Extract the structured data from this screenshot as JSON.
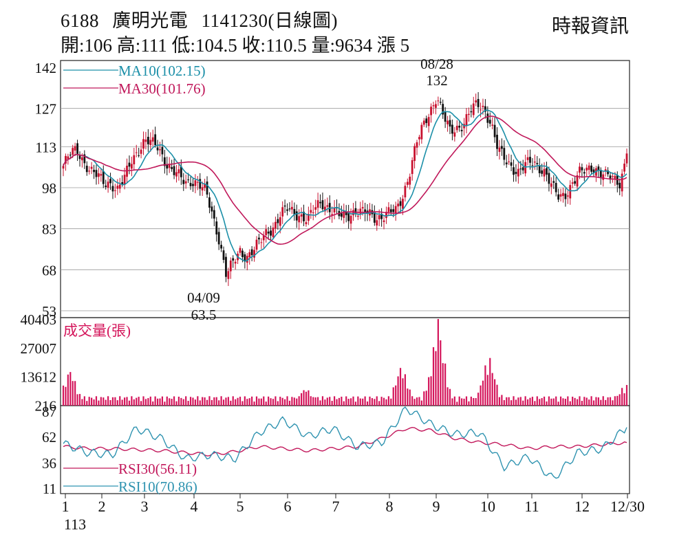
{
  "header": {
    "stock_code": "6188",
    "stock_name": "廣明光電",
    "date_label": "1141230(日線圖)",
    "open_label": "開:",
    "open": "106",
    "high_label": "高:",
    "high": "111",
    "low_label": "低:",
    "low": "104.5",
    "close_label": "收:",
    "close": "110.5",
    "volume_label": "量:",
    "volume": "9634",
    "change_label": "漲",
    "change": "5"
  },
  "source": "時報資訊",
  "colors": {
    "candle_up": "#c8102e",
    "candle_down": "#111111",
    "ma10": "#1b8fa8",
    "ma30": "#c0185a",
    "volume": "#d4145a",
    "rsi10": "#2f93b0",
    "rsi30": "#c2185b",
    "grid": "#9a9a9a"
  },
  "chart_data": [
    {
      "type": "candlestick",
      "ylim": [
        53,
        142
      ],
      "y_ticks": [
        "142",
        "127",
        "113",
        "98",
        "83",
        "68",
        "53"
      ],
      "x_ticks": [
        "1",
        "2",
        "3",
        "4",
        "5",
        "6",
        "7",
        "8",
        "9",
        "10",
        "11",
        "12",
        "12/30"
      ],
      "x_sublabel": "113",
      "legend": [
        {
          "label": "MA10(102.15)",
          "color": "#1b8fa8"
        },
        {
          "label": "MA30(101.76)",
          "color": "#c0185a"
        }
      ],
      "annotations": [
        {
          "date_text": "08/28",
          "value_text": "132",
          "type": "high"
        },
        {
          "date_text": "04/09",
          "value_text": "63.5",
          "type": "low"
        }
      ],
      "ohlc_monthly_approx": [
        {
          "month": "1",
          "points": [
            106,
            110,
            112,
            108,
            104,
            102,
            100
          ]
        },
        {
          "month": "2",
          "points": [
            100,
            97,
            101,
            108,
            112,
            115,
            114
          ]
        },
        {
          "month": "3",
          "points": [
            113,
            108,
            104,
            102,
            100,
            101,
            99
          ]
        },
        {
          "month": "4",
          "points": [
            96,
            88,
            79,
            66,
            70,
            75,
            73
          ]
        },
        {
          "month": "5",
          "points": [
            75,
            78,
            82,
            84,
            88,
            90,
            89
          ]
        },
        {
          "month": "6",
          "points": [
            88,
            86,
            90,
            93,
            91,
            89,
            87
          ]
        },
        {
          "month": "7",
          "points": [
            88,
            90,
            89,
            88,
            87,
            88,
            89
          ]
        },
        {
          "month": "8",
          "points": [
            89,
            95,
            104,
            114,
            120,
            126,
            132
          ]
        },
        {
          "month": "9",
          "points": [
            124,
            118,
            120,
            122,
            126,
            128,
            127
          ]
        },
        {
          "month": "10",
          "points": [
            122,
            112,
            108,
            106,
            104,
            106,
            107
          ]
        },
        {
          "month": "11",
          "points": [
            106,
            104,
            98,
            94,
            96,
            100,
            103
          ]
        },
        {
          "month": "12",
          "points": [
            104,
            106,
            104,
            102,
            101,
            100,
            110.5
          ]
        }
      ]
    },
    {
      "type": "bar",
      "title": "成交量(張)",
      "y_ticks": [
        "40403",
        "27007",
        "13612",
        "216"
      ],
      "ylim": [
        216,
        40403
      ],
      "notable_bars": [
        {
          "month": "1",
          "value": 18000
        },
        {
          "month": "6",
          "value": 9000
        },
        {
          "month": "8",
          "value": 20000
        },
        {
          "month": "9",
          "value": 40403
        },
        {
          "month": "10",
          "value": 25000
        },
        {
          "month": "12/30",
          "value": 9634
        }
      ]
    },
    {
      "type": "line",
      "y_ticks": [
        "87",
        "62",
        "36",
        "11"
      ],
      "ylim": [
        11,
        87
      ],
      "series": [
        {
          "name": "RSI30(56.11)",
          "color": "#c2185b",
          "values": [
            52,
            50,
            50,
            49,
            48,
            46,
            44,
            47,
            52,
            50,
            48,
            50,
            52,
            60,
            70,
            68,
            60,
            56,
            54,
            50,
            52,
            52,
            54,
            56
          ]
        },
        {
          "name": "RSI10(70.86)",
          "color": "#2f93b0",
          "values": [
            55,
            46,
            44,
            70,
            60,
            40,
            44,
            40,
            66,
            78,
            62,
            70,
            52,
            56,
            90,
            74,
            64,
            66,
            32,
            42,
            20,
            46,
            50,
            71
          ]
        }
      ]
    }
  ]
}
